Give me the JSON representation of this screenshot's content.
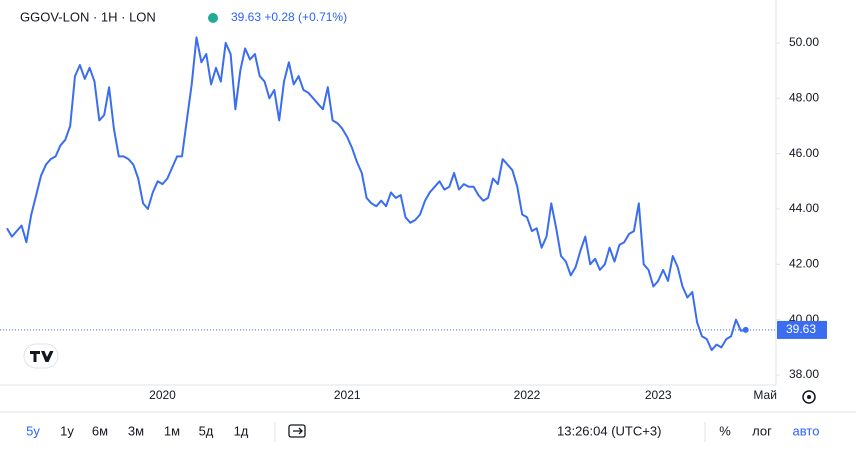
{
  "header": {
    "symbol": "GGOV-LON · 1H · LON",
    "quote": "39.63 +0.28 (+0.71%)"
  },
  "chart_data": {
    "type": "line",
    "categories": [
      null,
      null,
      null,
      null,
      null,
      null,
      null,
      null,
      null,
      null,
      null,
      null,
      null,
      null,
      null,
      null,
      null,
      null,
      null,
      null,
      null,
      null,
      null,
      null,
      null,
      null,
      null,
      null,
      null,
      null,
      null,
      null,
      "2020",
      null,
      null,
      null,
      null,
      null,
      null,
      null,
      null,
      null,
      null,
      null,
      null,
      null,
      null,
      null,
      null,
      null,
      null,
      null,
      null,
      null,
      null,
      null,
      null,
      null,
      null,
      null,
      null,
      null,
      null,
      null,
      null,
      null,
      null,
      null,
      null,
      null,
      "2021",
      null,
      null,
      null,
      null,
      null,
      null,
      null,
      null,
      null,
      null,
      null,
      null,
      null,
      null,
      null,
      null,
      null,
      null,
      null,
      null,
      null,
      null,
      null,
      null,
      null,
      null,
      null,
      null,
      null,
      null,
      null,
      null,
      null,
      null,
      null,
      null,
      "2022",
      null,
      null,
      null,
      null,
      null,
      null,
      null,
      null,
      null,
      null,
      null,
      null,
      null,
      null,
      null,
      null,
      null,
      null,
      null,
      null,
      null,
      null,
      null,
      null,
      null,
      null,
      "2023",
      null,
      null,
      null,
      null,
      null,
      null,
      null,
      null,
      null,
      null,
      null,
      null,
      null,
      null,
      null,
      null,
      null,
      null,
      null,
      null,
      null,
      "Май",
      null,
      null,
      null
    ],
    "series": [
      {
        "name": "GGOV-LON",
        "color": "#3a6df0",
        "values": [
          43.3,
          43.0,
          43.2,
          43.4,
          42.8,
          43.8,
          44.5,
          45.2,
          45.6,
          45.8,
          45.9,
          46.3,
          46.5,
          47.0,
          48.8,
          49.2,
          48.7,
          49.1,
          48.6,
          47.2,
          47.4,
          48.4,
          46.9,
          45.9,
          45.9,
          45.8,
          45.6,
          45.1,
          44.2,
          44.0,
          44.6,
          45.0,
          44.9,
          45.1,
          45.5,
          45.9,
          45.9,
          47.2,
          48.5,
          50.2,
          49.3,
          49.6,
          48.5,
          49.1,
          48.6,
          50.0,
          49.6,
          47.6,
          49.0,
          49.8,
          49.4,
          49.6,
          48.8,
          48.6,
          48.0,
          48.3,
          47.2,
          48.6,
          49.3,
          48.5,
          48.8,
          48.3,
          48.2,
          48.0,
          47.8,
          47.6,
          48.4,
          47.2,
          47.1,
          46.9,
          46.6,
          46.2,
          45.7,
          45.3,
          44.4,
          44.2,
          44.1,
          44.3,
          44.1,
          44.6,
          44.4,
          44.5,
          43.7,
          43.5,
          43.6,
          43.8,
          44.3,
          44.6,
          44.8,
          45.0,
          44.7,
          44.8,
          45.3,
          44.7,
          44.9,
          44.8,
          44.8,
          44.5,
          44.3,
          44.4,
          45.1,
          44.9,
          45.8,
          45.6,
          45.4,
          44.8,
          43.8,
          43.7,
          43.2,
          43.3,
          42.6,
          43.0,
          44.2,
          43.3,
          42.3,
          42.1,
          41.6,
          41.9,
          42.5,
          43.0,
          42.0,
          42.2,
          41.8,
          42.0,
          42.6,
          42.1,
          42.7,
          42.8,
          43.1,
          43.2,
          44.2,
          42.0,
          41.8,
          41.2,
          41.4,
          41.8,
          41.4,
          42.3,
          41.9,
          41.2,
          40.8,
          41.0,
          39.9,
          39.4,
          39.3,
          38.9,
          39.1,
          39.0,
          39.3,
          39.4,
          40.0,
          39.6,
          39.63,
          null,
          null,
          null,
          null,
          null,
          null,
          null
        ]
      }
    ],
    "last_price_label": "39.63",
    "ylim": [
      37.64,
      51.55
    ],
    "yticks": [
      {
        "value": 38,
        "label": "38.00"
      },
      {
        "value": 40,
        "label": "40.00"
      },
      {
        "value": 42,
        "label": "42.00"
      },
      {
        "value": 44,
        "label": "44.00"
      },
      {
        "value": 46,
        "label": "46.00"
      },
      {
        "value": 48,
        "label": "48.00"
      },
      {
        "value": 50,
        "label": "50.00"
      }
    ],
    "grid": false
  },
  "toolbar": {
    "ranges": [
      "5y",
      "1y",
      "6м",
      "3м",
      "1м",
      "5д",
      "1д"
    ],
    "time": "13:26:04 (UTC+3)",
    "percent": "%",
    "log": "лог",
    "auto": "авто"
  }
}
